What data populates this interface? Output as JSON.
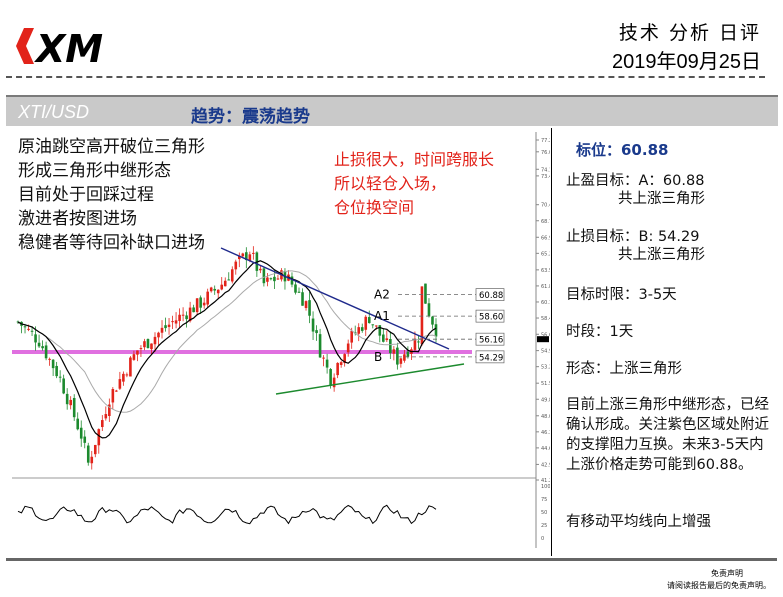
{
  "brand": {
    "logo_text": "XM"
  },
  "header": {
    "report_type": "技术 分析 日评",
    "date": "2019年09月25日"
  },
  "titlebar": {
    "symbol": "XTI/USD",
    "trend": "趋势：震荡趋势"
  },
  "notes": {
    "lines": [
      "原油跳空高开破位三角形",
      "形成三角形中继形态",
      "目前处于回踩过程",
      "激进者按图进场",
      "稳健者等待回补缺口进场"
    ],
    "red_lines": [
      "止损很大，时间跨服长",
      "所以轻仓入场，",
      "仓位换空间"
    ]
  },
  "chart": {
    "y_ticks": [
      "77.25",
      "76.00",
      "74.15",
      "73.45",
      "70.40",
      "68.70",
      "66.95",
      "65.25",
      "63.50",
      "61.80",
      "60.10",
      "58.40",
      "56.68",
      "54.95",
      "53.25",
      "51.50",
      "49.80",
      "48.05",
      "46.35",
      "44.65",
      "42.90",
      "41.25"
    ],
    "osc_ticks": [
      "100",
      "75",
      "50",
      "25",
      "0"
    ],
    "levels": [
      {
        "id": "A2",
        "price": "60.88"
      },
      {
        "id": "A1",
        "price": "58.60"
      },
      {
        "id": "",
        "price": "56.16"
      },
      {
        "id": "B",
        "price": "54.29"
      }
    ],
    "current_price": "56.16",
    "colors": {
      "up": "#e2231a",
      "down": "#1c8a2e",
      "ma": "#000000",
      "ma2": "#999999",
      "resistance": "#1f2a8c",
      "support": "#1c8a2e",
      "zone": "#e070e0"
    }
  },
  "panel": {
    "target": "标位：60.88",
    "take_profit": "止盈目标：A：60.88",
    "take_profit_sub": "共上涨三角形",
    "stop_loss": "止损目标：B: 54.29",
    "stop_loss_sub": "共上涨三角形",
    "time_target": "目标时限：3-5天",
    "period": "时段：1天",
    "pattern": "形态：上涨三角形",
    "commentary": "目前上涨三角形中继形态，已经确认形成。关注紫色区域处附近的支撑阻力互换。未来3-5天内上涨价格走势可能到60.88。",
    "ma_note": "有移动平均线向上增强"
  },
  "footer": {
    "disclaimer_title": "免责声明",
    "disclaimer_text": "请阅读报告最后的免责声明。"
  }
}
